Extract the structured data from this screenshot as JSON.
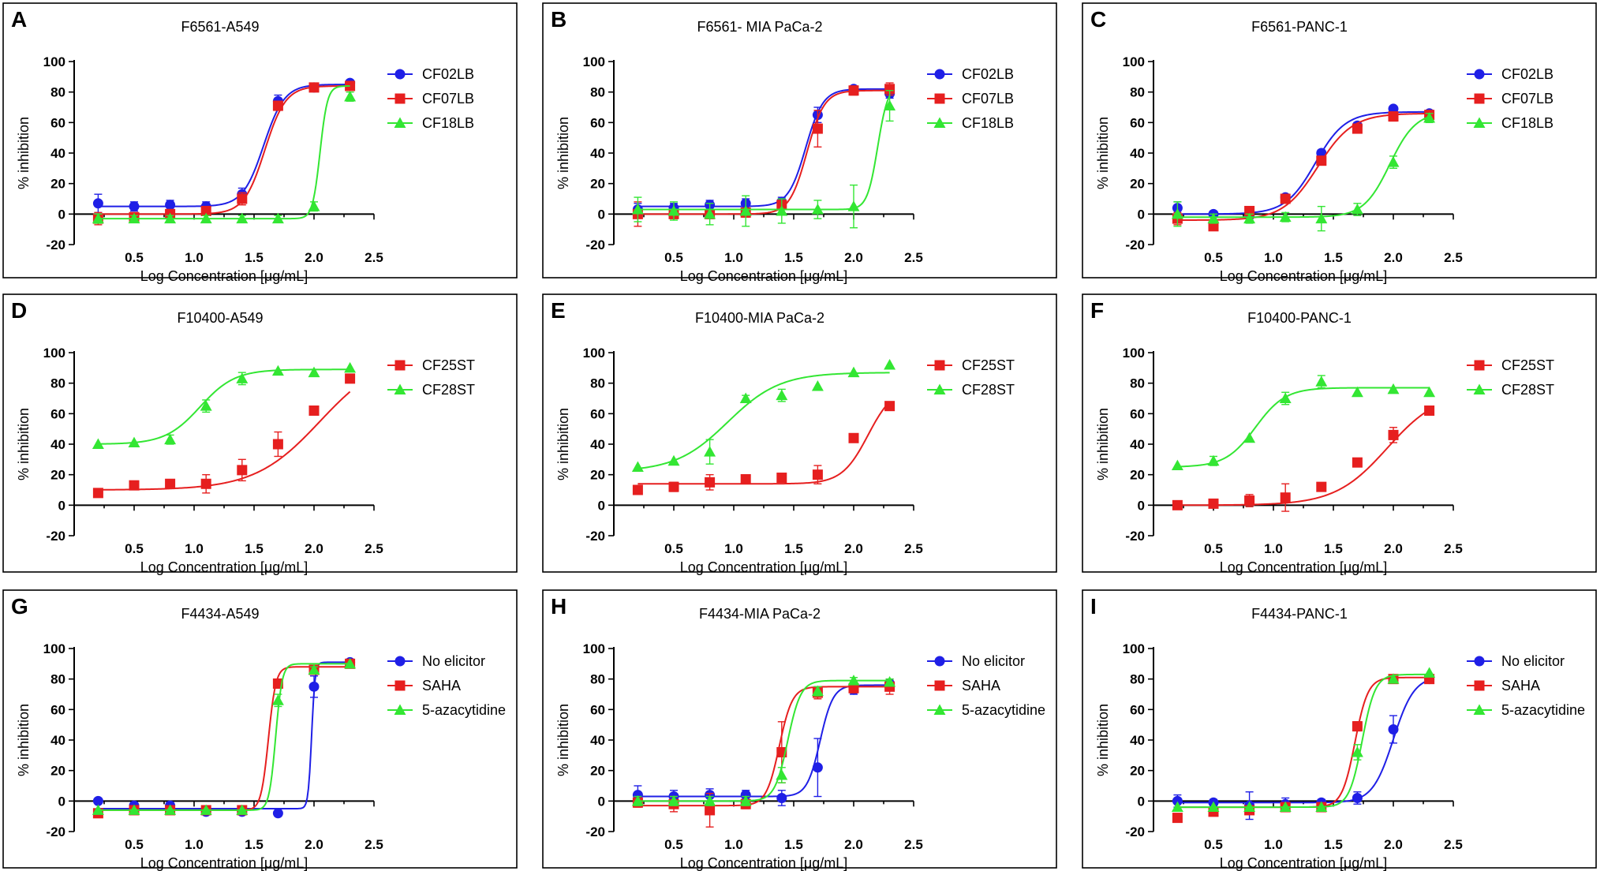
{
  "figure": {
    "colors": {
      "blue": "#1f1fe6",
      "red": "#e61f1f",
      "green": "#33e633"
    }
  },
  "chart_data": [
    {
      "type": "line",
      "panel": "A",
      "title": "F6561-A549",
      "xlabel": "Log Concentration [μg/mL]",
      "ylabel": "% inhibition",
      "xlim": [
        0,
        2.5
      ],
      "ylim": [
        -20,
        100
      ],
      "xticks": [
        "0.5",
        "1.0",
        "1.5",
        "2.0",
        "2.5"
      ],
      "yticks": [
        "-20",
        "0",
        "20",
        "40",
        "60",
        "80",
        "100"
      ],
      "x": [
        0.2,
        0.5,
        0.8,
        1.1,
        1.4,
        1.7,
        2.0,
        2.3
      ],
      "series": [
        {
          "name": "CF02LB",
          "color": "#1f1fe6",
          "marker": "circle",
          "values": [
            7,
            5,
            6,
            5,
            13,
            74,
            83,
            86
          ],
          "errors": [
            6,
            3,
            3,
            3,
            4,
            4,
            1,
            1
          ],
          "fit": {
            "bottom": 5,
            "top": 85,
            "ec50": 1.58,
            "hill": 5
          }
        },
        {
          "name": "CF07LB",
          "color": "#e61f1f",
          "marker": "square",
          "values": [
            -3,
            -2,
            0,
            2,
            10,
            71,
            83,
            84
          ],
          "errors": [
            4,
            3,
            3,
            3,
            4,
            3,
            1,
            1
          ],
          "fit": {
            "bottom": 0,
            "top": 84,
            "ec50": 1.59,
            "hill": 5
          }
        },
        {
          "name": "CF18LB",
          "color": "#33e633",
          "marker": "triangle",
          "values": [
            -3,
            -3,
            -3,
            -3,
            -3,
            -3,
            5,
            77
          ],
          "errors": [
            3,
            2,
            2,
            2,
            2,
            2,
            3,
            3
          ],
          "fit": {
            "bottom": -3,
            "top": 84,
            "ec50": 2.05,
            "hill": 14
          }
        }
      ]
    },
    {
      "type": "line",
      "panel": "B",
      "title": "F6561- MIA PaCa-2",
      "xlabel": "Log Concentration [μg/mL]",
      "ylabel": "% inhibition",
      "xlim": [
        0,
        2.5
      ],
      "ylim": [
        -20,
        100
      ],
      "xticks": [
        "0.5",
        "1.0",
        "1.5",
        "2.0",
        "2.5"
      ],
      "yticks": [
        "-20",
        "0",
        "20",
        "40",
        "60",
        "80",
        "100"
      ],
      "x": [
        0.2,
        0.5,
        0.8,
        1.1,
        1.4,
        1.7,
        2.0,
        2.3
      ],
      "series": [
        {
          "name": "CF02LB",
          "color": "#1f1fe6",
          "marker": "circle",
          "values": [
            3,
            4,
            6,
            7,
            8,
            65,
            82,
            79
          ],
          "errors": [
            4,
            3,
            3,
            3,
            3,
            5,
            1,
            3
          ],
          "fit": {
            "bottom": 5,
            "top": 82,
            "ec50": 1.6,
            "hill": 6
          }
        },
        {
          "name": "CF07LB",
          "color": "#e61f1f",
          "marker": "square",
          "values": [
            0,
            0,
            0,
            1,
            6,
            56,
            81,
            82
          ],
          "errors": [
            8,
            3,
            3,
            3,
            3,
            12,
            3,
            4
          ],
          "fit": {
            "bottom": 0,
            "top": 81,
            "ec50": 1.61,
            "hill": 6
          }
        },
        {
          "name": "CF18LB",
          "color": "#33e633",
          "marker": "triangle",
          "values": [
            3,
            2,
            0,
            2,
            2,
            3,
            5,
            71
          ],
          "errors": [
            8,
            6,
            7,
            10,
            8,
            6,
            14,
            10
          ],
          "fit": {
            "bottom": 3,
            "top": 85,
            "ec50": 2.2,
            "hill": 10
          }
        }
      ]
    },
    {
      "type": "line",
      "panel": "C",
      "title": "F6561-PANC-1",
      "xlabel": "Log Concentration [μg/mL]",
      "ylabel": "% inhibition",
      "xlim": [
        0,
        2.5
      ],
      "ylim": [
        -20,
        100
      ],
      "xticks": [
        "0.5",
        "1.0",
        "1.5",
        "2.0",
        "2.5"
      ],
      "yticks": [
        "-20",
        "0",
        "20",
        "40",
        "60",
        "80",
        "100"
      ],
      "x": [
        0.2,
        0.5,
        0.8,
        1.1,
        1.4,
        1.7,
        2.0,
        2.3
      ],
      "series": [
        {
          "name": "CF02LB",
          "color": "#1f1fe6",
          "marker": "circle",
          "values": [
            4,
            0,
            -1,
            11,
            40,
            58,
            69,
            66
          ],
          "errors": [
            4,
            1,
            2,
            2,
            2,
            2,
            1,
            2
          ],
          "fit": {
            "bottom": 0,
            "top": 67,
            "ec50": 1.35,
            "hill": 3.5
          }
        },
        {
          "name": "CF07LB",
          "color": "#e61f1f",
          "marker": "square",
          "values": [
            -3,
            -8,
            2,
            10,
            35,
            56,
            64,
            65
          ],
          "errors": [
            4,
            2,
            2,
            2,
            2,
            2,
            3,
            2
          ],
          "fit": {
            "bottom": -4,
            "top": 66,
            "ec50": 1.37,
            "hill": 3
          }
        },
        {
          "name": "CF18LB",
          "color": "#33e633",
          "marker": "triangle",
          "values": [
            0,
            -3,
            -3,
            -2,
            -3,
            3,
            34,
            63
          ],
          "errors": [
            8,
            3,
            3,
            3,
            8,
            4,
            4,
            3
          ],
          "fit": {
            "bottom": -2,
            "top": 67,
            "ec50": 1.97,
            "hill": 4
          }
        }
      ]
    },
    {
      "type": "line",
      "panel": "D",
      "title": "F10400-A549",
      "xlabel": "Log Concentration [μg/mL]",
      "ylabel": "% inhibition",
      "xlim": [
        0,
        2.5
      ],
      "ylim": [
        -20,
        100
      ],
      "xticks": [
        "0.5",
        "1.0",
        "1.5",
        "2.0",
        "2.5"
      ],
      "yticks": [
        "-20",
        "0",
        "20",
        "40",
        "60",
        "80",
        "100"
      ],
      "x": [
        0.2,
        0.5,
        0.8,
        1.1,
        1.4,
        1.7,
        2.0,
        2.3
      ],
      "series": [
        {
          "name": "CF25ST",
          "color": "#e61f1f",
          "marker": "square",
          "values": [
            8,
            13,
            14,
            14,
            23,
            40,
            62,
            83
          ],
          "errors": [
            2,
            2,
            2,
            6,
            7,
            8,
            2,
            2
          ],
          "fit": {
            "bottom": 10,
            "top": 100,
            "ec50": 2.05,
            "hill": 1.6
          }
        },
        {
          "name": "CF28ST",
          "color": "#33e633",
          "marker": "triangle",
          "values": [
            40,
            41,
            43,
            65,
            83,
            88,
            87,
            90
          ],
          "errors": [
            1,
            1,
            3,
            4,
            4,
            1,
            1,
            1
          ],
          "fit": {
            "bottom": 40,
            "top": 89,
            "ec50": 1.05,
            "hill": 3
          }
        }
      ]
    },
    {
      "type": "line",
      "panel": "E",
      "title": "F10400-MIA PaCa-2",
      "xlabel": "Log Concentration [μg/mL]",
      "ylabel": "% inhibition",
      "xlim": [
        0,
        2.5
      ],
      "ylim": [
        -20,
        100
      ],
      "xticks": [
        "0.5",
        "1.0",
        "1.5",
        "2.0",
        "2.5"
      ],
      "yticks": [
        "-20",
        "0",
        "20",
        "40",
        "60",
        "80",
        "100"
      ],
      "x": [
        0.2,
        0.5,
        0.8,
        1.1,
        1.4,
        1.7,
        2.0,
        2.3
      ],
      "series": [
        {
          "name": "CF25ST",
          "color": "#e61f1f",
          "marker": "square",
          "values": [
            10,
            12,
            15,
            17,
            18,
            20,
            44,
            65
          ],
          "errors": [
            3,
            3,
            5,
            2,
            2,
            6,
            2,
            2
          ],
          "fit": {
            "bottom": 14,
            "top": 78,
            "ec50": 2.12,
            "hill": 4
          }
        },
        {
          "name": "CF28ST",
          "color": "#33e633",
          "marker": "triangle",
          "values": [
            25,
            29,
            35,
            70,
            72,
            78,
            87,
            92
          ],
          "errors": [
            1,
            1,
            8,
            2,
            4,
            1,
            1,
            1
          ],
          "fit": {
            "bottom": 22,
            "top": 87,
            "ec50": 0.95,
            "hill": 2
          }
        }
      ]
    },
    {
      "type": "line",
      "panel": "F",
      "title": "F10400-PANC-1",
      "xlabel": "Log Concentration [μg/mL]",
      "ylabel": "% inhibition",
      "xlim": [
        0,
        2.5
      ],
      "ylim": [
        -20,
        100
      ],
      "xticks": [
        "0.5",
        "1.0",
        "1.5",
        "2.0",
        "2.5"
      ],
      "yticks": [
        "-20",
        "0",
        "20",
        "40",
        "60",
        "80",
        "100"
      ],
      "x": [
        0.2,
        0.5,
        0.8,
        1.1,
        1.4,
        1.7,
        2.0,
        2.3
      ],
      "series": [
        {
          "name": "CF25ST",
          "color": "#e61f1f",
          "marker": "square",
          "values": [
            0,
            1,
            3,
            5,
            12,
            28,
            46,
            62
          ],
          "errors": [
            1,
            1,
            4,
            9,
            1,
            1,
            5,
            1
          ],
          "fit": {
            "bottom": 0,
            "top": 75,
            "ec50": 1.95,
            "hill": 2
          }
        },
        {
          "name": "CF28ST",
          "color": "#33e633",
          "marker": "triangle",
          "values": [
            26,
            29,
            44,
            70,
            81,
            74,
            76,
            74
          ],
          "errors": [
            1,
            3,
            1,
            4,
            4,
            1,
            1,
            1
          ],
          "fit": {
            "bottom": 25,
            "top": 77,
            "ec50": 0.85,
            "hill": 3.5
          }
        }
      ]
    },
    {
      "type": "line",
      "panel": "G",
      "title": "F4434-A549",
      "xlabel": "Log Concentration [μg/mL]",
      "ylabel": "% inhibition",
      "xlim": [
        0,
        2.5
      ],
      "ylim": [
        -20,
        100
      ],
      "xticks": [
        "0.5",
        "1.0",
        "1.5",
        "2.0",
        "2.5"
      ],
      "yticks": [
        "-20",
        "0",
        "20",
        "40",
        "60",
        "80",
        "100"
      ],
      "x": [
        0.2,
        0.5,
        0.8,
        1.1,
        1.4,
        1.7,
        2.0,
        2.3
      ],
      "series": [
        {
          "name": "No elicitor",
          "color": "#1f1fe6",
          "marker": "circle",
          "values": [
            0,
            -3,
            -3,
            -7,
            -7,
            -8,
            75,
            91
          ],
          "errors": [
            1,
            2,
            2,
            2,
            1,
            1,
            7,
            1
          ],
          "fit": {
            "bottom": -5,
            "top": 91,
            "ec50": 1.98,
            "hill": 30
          }
        },
        {
          "name": "SAHA",
          "color": "#e61f1f",
          "marker": "square",
          "values": [
            -8,
            -6,
            -6,
            -6,
            -6,
            77,
            86,
            90
          ],
          "errors": [
            1,
            1,
            1,
            1,
            1,
            3,
            2,
            1
          ],
          "fit": {
            "bottom": -6,
            "top": 88,
            "ec50": 1.62,
            "hill": 14
          }
        },
        {
          "name": "5-azacytidine",
          "color": "#33e633",
          "marker": "triangle",
          "values": [
            -6,
            -6,
            -6,
            -6,
            -6,
            66,
            86,
            90
          ],
          "errors": [
            1,
            1,
            1,
            1,
            1,
            4,
            2,
            1
          ],
          "fit": {
            "bottom": -6,
            "top": 90,
            "ec50": 1.68,
            "hill": 16
          }
        }
      ]
    },
    {
      "type": "line",
      "panel": "H",
      "title": "F4434-MIA PaCa-2",
      "xlabel": "Log Concentration [μg/mL]",
      "ylabel": "% inhibition",
      "xlim": [
        0,
        2.5
      ],
      "ylim": [
        -20,
        100
      ],
      "xticks": [
        "0.5",
        "1.0",
        "1.5",
        "2.0",
        "2.5"
      ],
      "yticks": [
        "-20",
        "0",
        "20",
        "40",
        "60",
        "80",
        "100"
      ],
      "x": [
        0.2,
        0.5,
        0.8,
        1.1,
        1.4,
        1.7,
        2.0,
        2.3
      ],
      "series": [
        {
          "name": "No elicitor",
          "color": "#1f1fe6",
          "marker": "circle",
          "values": [
            4,
            3,
            4,
            4,
            2,
            22,
            73,
            77
          ],
          "errors": [
            6,
            4,
            4,
            3,
            5,
            19,
            3,
            3
          ],
          "fit": {
            "bottom": 3,
            "top": 76,
            "ec50": 1.72,
            "hill": 8
          }
        },
        {
          "name": "SAHA",
          "color": "#e61f1f",
          "marker": "square",
          "values": [
            -1,
            -2,
            -6,
            -2,
            32,
            71,
            74,
            75
          ],
          "errors": [
            3,
            5,
            11,
            3,
            20,
            4,
            3,
            5
          ],
          "fit": {
            "bottom": -3,
            "top": 75,
            "ec50": 1.38,
            "hill": 8
          }
        },
        {
          "name": "5-azacytidine",
          "color": "#33e633",
          "marker": "triangle",
          "values": [
            0,
            0,
            0,
            0,
            17,
            72,
            79,
            78
          ],
          "errors": [
            3,
            3,
            3,
            3,
            5,
            3,
            2,
            2
          ],
          "fit": {
            "bottom": 0,
            "top": 79,
            "ec50": 1.45,
            "hill": 8
          }
        }
      ]
    },
    {
      "type": "line",
      "panel": "I",
      "title": "F4434-PANC-1",
      "xlabel": "Log Concentration [μg/mL]",
      "ylabel": "% inhibition",
      "xlim": [
        0,
        2.5
      ],
      "ylim": [
        -20,
        100
      ],
      "xticks": [
        "0.5",
        "1.0",
        "1.5",
        "2.0",
        "2.5"
      ],
      "yticks": [
        "-20",
        "0",
        "20",
        "40",
        "60",
        "80",
        "100"
      ],
      "x": [
        0.2,
        0.5,
        0.8,
        1.1,
        1.4,
        1.7,
        2.0,
        2.3
      ],
      "series": [
        {
          "name": "No elicitor",
          "color": "#1f1fe6",
          "marker": "circle",
          "values": [
            0,
            -1,
            -3,
            -2,
            -1,
            2,
            47,
            80
          ],
          "errors": [
            4,
            2,
            9,
            4,
            2,
            4,
            9,
            2
          ],
          "fit": {
            "bottom": -1,
            "top": 82,
            "ec50": 2.0,
            "hill": 5
          }
        },
        {
          "name": "SAHA",
          "color": "#e61f1f",
          "marker": "square",
          "values": [
            -11,
            -7,
            -6,
            -4,
            -4,
            49,
            80,
            80
          ],
          "errors": [
            1,
            1,
            1,
            1,
            1,
            3,
            1,
            1
          ],
          "fit": {
            "bottom": -4,
            "top": 81,
            "ec50": 1.68,
            "hill": 8
          }
        },
        {
          "name": "5-azacytidine",
          "color": "#33e633",
          "marker": "triangle",
          "values": [
            -4,
            -4,
            -4,
            -4,
            -4,
            32,
            80,
            84
          ],
          "errors": [
            1,
            1,
            1,
            1,
            1,
            5,
            1,
            1
          ],
          "fit": {
            "bottom": -4,
            "top": 83,
            "ec50": 1.74,
            "hill": 8
          }
        }
      ]
    }
  ]
}
